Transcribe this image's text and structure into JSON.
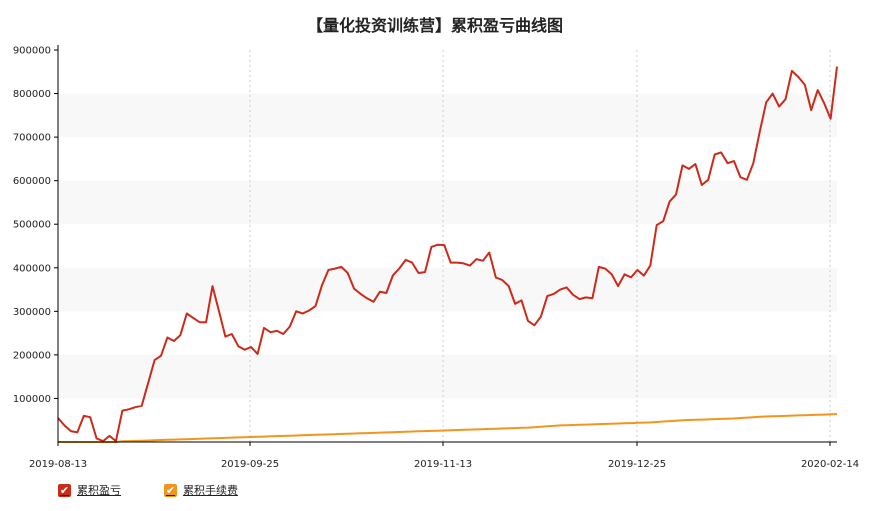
{
  "colors": {
    "pnl": "#cc2a1a",
    "fee": "#f0961e",
    "axis": "#000000",
    "band": "#f8f8f8",
    "vgrid": "#cccccc"
  },
  "legend": {
    "pnl_label": "累积盈亏",
    "fee_label": "累积手续费",
    "check_icon": "✔"
  },
  "chart_data": {
    "type": "line",
    "title": "【量化投资训练营】累积盈亏曲线图",
    "xlabel": "",
    "ylabel": "",
    "x_ticks": [
      "2019-08-13",
      "2019-09-25",
      "2019-11-13",
      "2019-12-25",
      "2020-02-14"
    ],
    "y_ticks": [
      100000,
      200000,
      300000,
      400000,
      500000,
      600000,
      700000,
      800000,
      900000
    ],
    "ylim": [
      0,
      900000
    ],
    "grid": "horizontal bands, dotted vertical lines at x ticks",
    "legend_position": "bottom-left",
    "series": [
      {
        "name": "累积盈亏",
        "color": "#cc2a1a",
        "values": [
          55000,
          38000,
          25000,
          22000,
          60000,
          57000,
          8000,
          2000,
          14000,
          2000,
          72000,
          75000,
          80000,
          83000,
          135000,
          188000,
          198000,
          240000,
          232000,
          245000,
          295000,
          285000,
          275000,
          275000,
          358000,
          300000,
          242000,
          248000,
          220000,
          212000,
          218000,
          202000,
          262000,
          252000,
          255000,
          248000,
          265000,
          300000,
          295000,
          302000,
          312000,
          360000,
          395000,
          398000,
          402000,
          388000,
          352000,
          340000,
          330000,
          322000,
          345000,
          342000,
          382000,
          398000,
          418000,
          412000,
          388000,
          390000,
          448000,
          453000,
          452000,
          412000,
          412000,
          410000,
          405000,
          420000,
          416000,
          435000,
          378000,
          372000,
          358000,
          317000,
          325000,
          278000,
          268000,
          288000,
          335000,
          340000,
          350000,
          355000,
          338000,
          328000,
          332000,
          330000,
          402000,
          398000,
          385000,
          358000,
          385000,
          378000,
          395000,
          382000,
          405000,
          498000,
          507000,
          552000,
          568000,
          635000,
          627000,
          638000,
          590000,
          602000,
          660000,
          665000,
          640000,
          645000,
          608000,
          602000,
          640000,
          712000,
          780000,
          800000,
          770000,
          787000,
          852000,
          838000,
          820000,
          762000,
          808000,
          778000,
          742000,
          862000
        ]
      },
      {
        "name": "累积手续费",
        "color": "#f0961e",
        "values": [
          0,
          0,
          0,
          0,
          0,
          0,
          0,
          0,
          0,
          0,
          1500,
          2000,
          2500,
          3000,
          3500,
          4000,
          4500,
          5000,
          5500,
          6000,
          6500,
          7000,
          7500,
          8000,
          8500,
          9000,
          9500,
          10000,
          10500,
          11000,
          11500,
          12000,
          12500,
          13000,
          13500,
          14000,
          14500,
          15000,
          15500,
          16000,
          16500,
          17000,
          17500,
          18000,
          18500,
          19000,
          19500,
          20000,
          20500,
          21000,
          21500,
          22000,
          22500,
          23000,
          23500,
          24000,
          24500,
          25000,
          25500,
          26000,
          26500,
          27000,
          27500,
          28000,
          28500,
          29000,
          29500,
          30000,
          30500,
          31000,
          31500,
          32000,
          32500,
          33000,
          34000,
          35000,
          36000,
          37000,
          38000,
          38500,
          39000,
          39500,
          40000,
          40500,
          41000,
          41500,
          42000,
          42500,
          43000,
          43500,
          44000,
          44500,
          45000,
          46000,
          47000,
          48000,
          49000,
          50000,
          50500,
          51000,
          51500,
          52000,
          52500,
          53000,
          53500,
          54000,
          55000,
          56000,
          57000,
          58000,
          58500,
          59000,
          59500,
          60000,
          60500,
          61000,
          61500,
          62000,
          62500,
          63000,
          63500,
          64000
        ]
      }
    ]
  }
}
